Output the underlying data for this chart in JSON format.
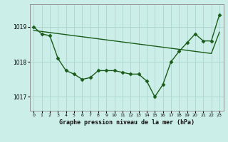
{
  "title": "Graphe pression niveau de la mer (hPa)",
  "background_color": "#cceee8",
  "grid_color": "#aad4ce",
  "line_color": "#1a5c1a",
  "marker_color": "#1a5c1a",
  "x_values": [
    0,
    1,
    2,
    3,
    4,
    5,
    6,
    7,
    8,
    9,
    10,
    11,
    12,
    13,
    14,
    15,
    16,
    17,
    18,
    19,
    20,
    21,
    22,
    23
  ],
  "y_main": [
    1019.0,
    1018.8,
    1018.75,
    1018.1,
    1017.75,
    1017.65,
    1017.5,
    1017.55,
    1017.75,
    1017.75,
    1017.75,
    1017.7,
    1017.65,
    1017.65,
    1017.45,
    1017.0,
    1017.35,
    1018.0,
    1018.3,
    1018.55,
    1018.8,
    1018.6,
    1018.6,
    1019.35
  ],
  "y_trend": [
    1018.9,
    1018.87,
    1018.84,
    1018.81,
    1018.78,
    1018.75,
    1018.72,
    1018.69,
    1018.66,
    1018.63,
    1018.6,
    1018.57,
    1018.54,
    1018.51,
    1018.48,
    1018.45,
    1018.42,
    1018.39,
    1018.36,
    1018.33,
    1018.3,
    1018.27,
    1018.24,
    1018.85
  ],
  "ylim": [
    1016.6,
    1019.65
  ],
  "yticks": [
    1017,
    1018,
    1019
  ],
  "xlim": [
    -0.5,
    23.5
  ],
  "figsize": [
    3.2,
    2.0
  ],
  "dpi": 100
}
